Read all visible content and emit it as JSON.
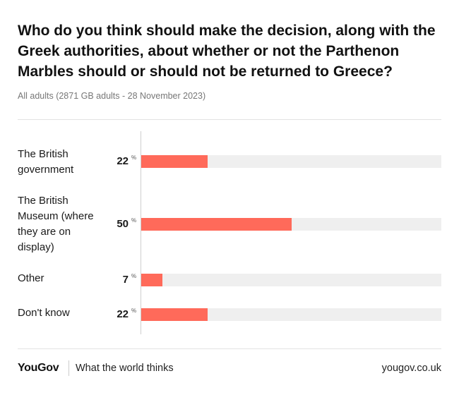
{
  "chart_data": {
    "type": "bar",
    "orientation": "horizontal",
    "title": "Who do you think should make the decision, along with the Greek authorities, about whether or not the Parthenon Marbles should or should not be returned to Greece?",
    "subtitle": "All adults (2871 GB adults - 28 November 2023)",
    "categories": [
      "The British government",
      "The British Museum (where they are on display)",
      "Other",
      "Don't know"
    ],
    "values": [
      22,
      50,
      7,
      22
    ],
    "unit": "%",
    "xlim": [
      0,
      100
    ],
    "xlabel": "",
    "ylabel": "",
    "colors": {
      "bar": "#ff6a5a",
      "track": "#efefef"
    }
  },
  "footer": {
    "brand": "YouGov",
    "tagline": "What the world thinks",
    "site": "yougov.co.uk"
  }
}
